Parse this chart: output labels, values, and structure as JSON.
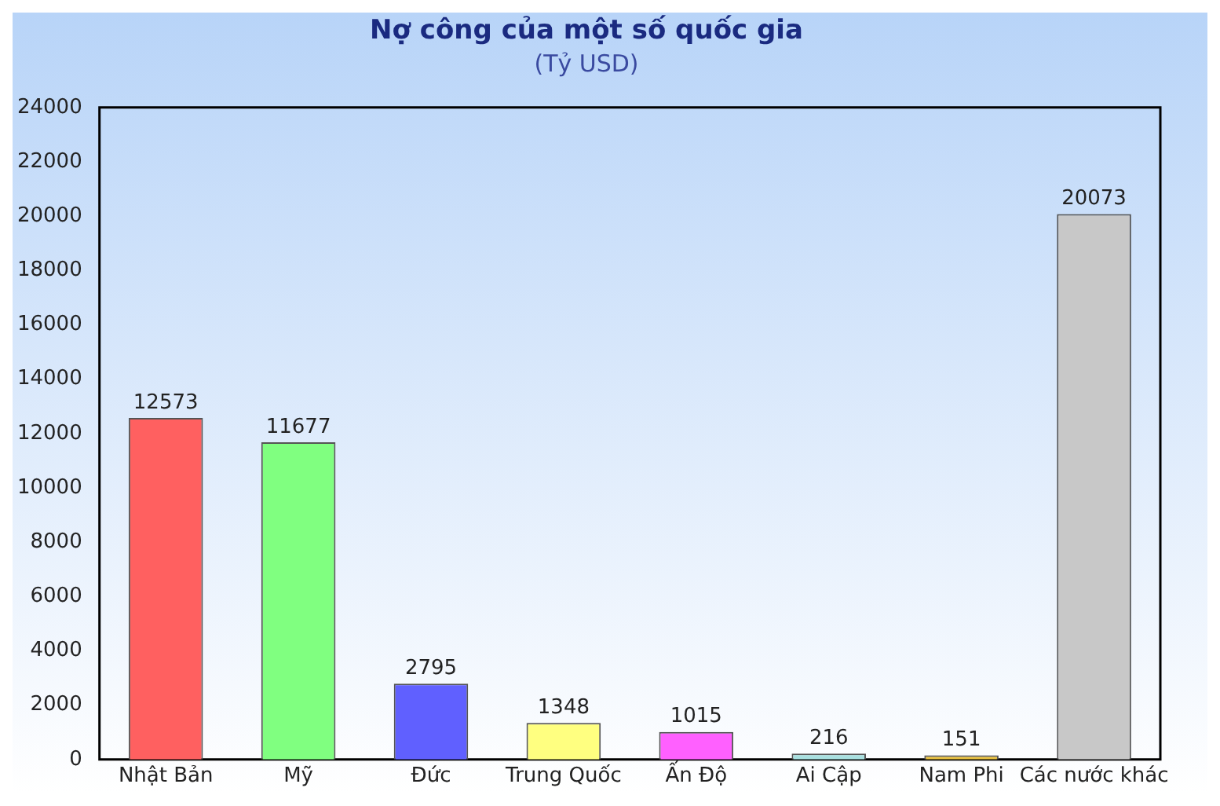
{
  "chart_data": {
    "type": "bar",
    "title": "Nợ công của một số quốc gia",
    "subtitle": "(Tỷ USD)",
    "categories": [
      "Nhật Bản",
      "Mỹ",
      "Đức",
      "Trung Quốc",
      "Ấn Độ",
      "Ai Cập",
      "Nam Phi",
      "Các nước khác"
    ],
    "values": [
      12573,
      11677,
      2795,
      1348,
      1015,
      216,
      151,
      20073
    ],
    "colors": [
      "#ff6060",
      "#80ff80",
      "#6060ff",
      "#ffff80",
      "#ff60ff",
      "#a8e0e0",
      "#e8c040",
      "#c8c8c8"
    ],
    "ylim": [
      0,
      24000
    ],
    "yticks": [
      0,
      2000,
      4000,
      6000,
      8000,
      10000,
      12000,
      14000,
      16000,
      18000,
      20000,
      22000,
      24000
    ],
    "grid": false,
    "legend": false,
    "data_labels": true
  }
}
